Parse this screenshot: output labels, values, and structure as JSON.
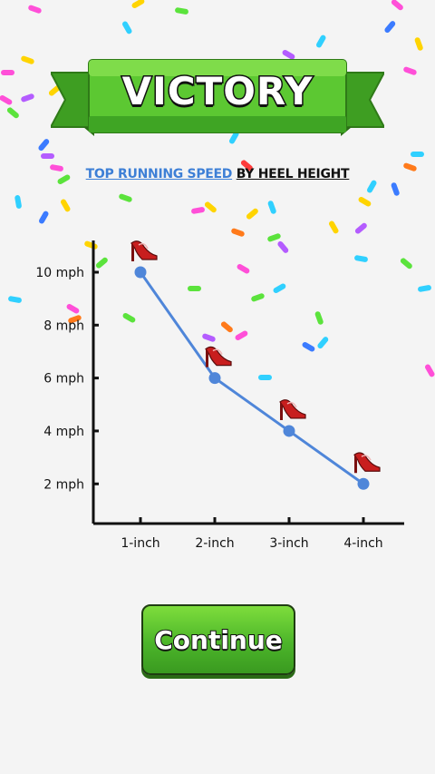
{
  "header": {
    "title": "VICTORY"
  },
  "subtitle": {
    "highlight": "TOP RUNNING SPEED",
    "rest": "BY HEEL HEIGHT"
  },
  "chart_data": {
    "type": "line",
    "title": "TOP RUNNING SPEED BY HEEL HEIGHT",
    "categories": [
      "1-inch",
      "2-inch",
      "3-inch",
      "4-inch"
    ],
    "values": [
      10,
      6,
      4,
      2
    ],
    "y_ticks": [
      2,
      4,
      6,
      8,
      10
    ],
    "y_tick_labels": [
      "2 mph",
      "4 mph",
      "6 mph",
      "8 mph",
      "10 mph"
    ],
    "ylim": [
      0.5,
      11.2
    ],
    "grid": false,
    "line_color": "#4f86d9",
    "marker_icon": "high-heel-icon"
  },
  "actions": {
    "continue_label": "Continue"
  },
  "colors": {
    "banner_green": "#4bbf2a",
    "accent_blue": "#3d7fd6"
  }
}
